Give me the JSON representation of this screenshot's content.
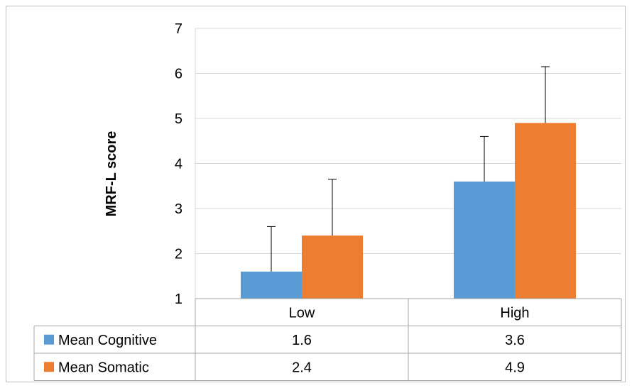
{
  "chart_data": {
    "type": "bar",
    "title": "",
    "xlabel": "",
    "ylabel": "MRF-L score",
    "ylim": [
      1,
      7
    ],
    "yticks": [
      "1",
      "2",
      "3",
      "4",
      "5",
      "6",
      "7"
    ],
    "categories": [
      "Low",
      "High"
    ],
    "grid": "horizontal",
    "legend": "data table below chart",
    "series": [
      {
        "name": "Mean Cognitive",
        "color": "#5b9bd5",
        "values": [
          1.6,
          3.6
        ],
        "value_labels": [
          "1.6",
          "3.6"
        ],
        "error_upper": [
          2.6,
          4.6
        ]
      },
      {
        "name": "Mean Somatic",
        "color": "#ed7d31",
        "values": [
          2.4,
          4.9
        ],
        "value_labels": [
          "2.4",
          "4.9"
        ],
        "error_upper": [
          3.65,
          6.15
        ]
      }
    ]
  }
}
